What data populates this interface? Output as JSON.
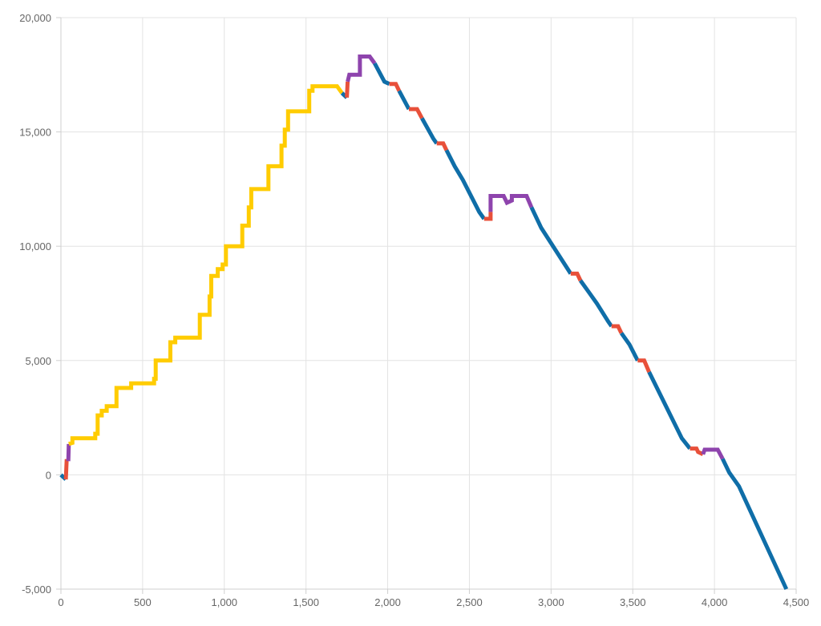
{
  "chart_data": {
    "type": "line",
    "title": "",
    "xlabel": "",
    "ylabel": "",
    "xlim": [
      0,
      4500
    ],
    "ylim": [
      -5000,
      20000
    ],
    "x_ticks": [
      0,
      500,
      1000,
      1500,
      2000,
      2500,
      3000,
      3500,
      4000,
      4500
    ],
    "x_tick_labels": [
      "0",
      "500",
      "1,000",
      "1,500",
      "2,000",
      "2,500",
      "3,000",
      "3,500",
      "4,000",
      "4,500"
    ],
    "y_ticks": [
      -5000,
      0,
      5000,
      10000,
      15000,
      20000
    ],
    "y_tick_labels": [
      "-5,000",
      "0",
      "5,000",
      "10,000",
      "15,000",
      "20,000"
    ],
    "grid": true,
    "legend": "none",
    "colors": {
      "blue": "#0f6ea8",
      "yellow": "#ffcc00",
      "red": "#e8503a",
      "purple": "#8e44ad"
    },
    "segments": [
      {
        "color": "blue",
        "points": [
          [
            0,
            0
          ],
          [
            30,
            -200
          ]
        ]
      },
      {
        "color": "red",
        "points": [
          [
            30,
            -200
          ],
          [
            35,
            600
          ],
          [
            45,
            600
          ]
        ]
      },
      {
        "color": "purple",
        "points": [
          [
            45,
            600
          ],
          [
            48,
            1350
          ]
        ]
      },
      {
        "color": "yellow",
        "points": [
          [
            48,
            1350
          ],
          [
            70,
            1400
          ],
          [
            70,
            1600
          ],
          [
            210,
            1600
          ],
          [
            210,
            1800
          ],
          [
            225,
            1800
          ],
          [
            225,
            2600
          ],
          [
            250,
            2600
          ],
          [
            250,
            2800
          ],
          [
            280,
            2800
          ],
          [
            280,
            3000
          ],
          [
            340,
            3000
          ],
          [
            340,
            3800
          ],
          [
            430,
            3800
          ],
          [
            430,
            4000
          ],
          [
            570,
            4000
          ],
          [
            570,
            4200
          ],
          [
            580,
            4200
          ],
          [
            580,
            5000
          ],
          [
            670,
            5000
          ],
          [
            670,
            5800
          ],
          [
            700,
            5800
          ],
          [
            700,
            6000
          ],
          [
            850,
            6000
          ],
          [
            850,
            7000
          ],
          [
            910,
            7000
          ],
          [
            910,
            7800
          ],
          [
            920,
            7800
          ],
          [
            920,
            8700
          ],
          [
            960,
            8700
          ],
          [
            960,
            9000
          ],
          [
            990,
            9000
          ],
          [
            990,
            9200
          ],
          [
            1010,
            9200
          ],
          [
            1010,
            10000
          ],
          [
            1110,
            10000
          ],
          [
            1110,
            10900
          ],
          [
            1150,
            10900
          ],
          [
            1150,
            11700
          ],
          [
            1165,
            11700
          ],
          [
            1165,
            12500
          ],
          [
            1270,
            12500
          ],
          [
            1270,
            13500
          ],
          [
            1350,
            13500
          ],
          [
            1350,
            14400
          ],
          [
            1370,
            14400
          ],
          [
            1370,
            15100
          ],
          [
            1390,
            15100
          ],
          [
            1390,
            15900
          ],
          [
            1520,
            15900
          ],
          [
            1520,
            16800
          ],
          [
            1540,
            16800
          ],
          [
            1540,
            17000
          ],
          [
            1690,
            17000
          ],
          [
            1720,
            16700
          ]
        ]
      },
      {
        "color": "blue",
        "points": [
          [
            1720,
            16700
          ],
          [
            1750,
            16500
          ]
        ]
      },
      {
        "color": "red",
        "points": [
          [
            1750,
            16500
          ],
          [
            1755,
            17200
          ]
        ]
      },
      {
        "color": "purple",
        "points": [
          [
            1755,
            17200
          ],
          [
            1765,
            17500
          ],
          [
            1830,
            17500
          ],
          [
            1830,
            18300
          ],
          [
            1890,
            18300
          ],
          [
            1920,
            18000
          ]
        ]
      },
      {
        "color": "blue",
        "points": [
          [
            1920,
            18000
          ],
          [
            1980,
            17200
          ],
          [
            2010,
            17100
          ]
        ]
      },
      {
        "color": "red",
        "points": [
          [
            2010,
            17100
          ],
          [
            2050,
            17100
          ],
          [
            2070,
            16800
          ]
        ]
      },
      {
        "color": "blue",
        "points": [
          [
            2070,
            16800
          ],
          [
            2130,
            16000
          ]
        ]
      },
      {
        "color": "red",
        "points": [
          [
            2130,
            16000
          ],
          [
            2180,
            16000
          ],
          [
            2210,
            15600
          ]
        ]
      },
      {
        "color": "blue",
        "points": [
          [
            2210,
            15600
          ],
          [
            2280,
            14700
          ],
          [
            2300,
            14500
          ]
        ]
      },
      {
        "color": "red",
        "points": [
          [
            2300,
            14500
          ],
          [
            2340,
            14500
          ],
          [
            2360,
            14200
          ]
        ]
      },
      {
        "color": "blue",
        "points": [
          [
            2360,
            14200
          ],
          [
            2410,
            13500
          ],
          [
            2460,
            12900
          ],
          [
            2560,
            11500
          ],
          [
            2590,
            11200
          ]
        ]
      },
      {
        "color": "red",
        "points": [
          [
            2590,
            11200
          ],
          [
            2630,
            11200
          ],
          [
            2630,
            11500
          ]
        ]
      },
      {
        "color": "purple",
        "points": [
          [
            2630,
            11500
          ],
          [
            2630,
            12200
          ],
          [
            2710,
            12200
          ],
          [
            2730,
            11900
          ],
          [
            2760,
            12000
          ],
          [
            2760,
            12200
          ],
          [
            2850,
            12200
          ],
          [
            2880,
            11700
          ]
        ]
      },
      {
        "color": "blue",
        "points": [
          [
            2880,
            11700
          ],
          [
            2940,
            10800
          ],
          [
            3120,
            8800
          ]
        ]
      },
      {
        "color": "red",
        "points": [
          [
            3120,
            8800
          ],
          [
            3160,
            8800
          ],
          [
            3180,
            8500
          ]
        ]
      },
      {
        "color": "blue",
        "points": [
          [
            3180,
            8500
          ],
          [
            3230,
            8000
          ],
          [
            3280,
            7500
          ],
          [
            3350,
            6700
          ],
          [
            3370,
            6500
          ]
        ]
      },
      {
        "color": "red",
        "points": [
          [
            3370,
            6500
          ],
          [
            3410,
            6500
          ],
          [
            3430,
            6200
          ]
        ]
      },
      {
        "color": "blue",
        "points": [
          [
            3430,
            6200
          ],
          [
            3480,
            5700
          ],
          [
            3530,
            5000
          ]
        ]
      },
      {
        "color": "red",
        "points": [
          [
            3530,
            5000
          ],
          [
            3570,
            5000
          ],
          [
            3600,
            4500
          ]
        ]
      },
      {
        "color": "blue",
        "points": [
          [
            3600,
            4500
          ],
          [
            3800,
            1600
          ],
          [
            3850,
            1150
          ]
        ]
      },
      {
        "color": "red",
        "points": [
          [
            3850,
            1150
          ],
          [
            3890,
            1150
          ],
          [
            3900,
            1000
          ],
          [
            3930,
            900
          ]
        ]
      },
      {
        "color": "purple",
        "points": [
          [
            3930,
            900
          ],
          [
            3940,
            1100
          ],
          [
            4020,
            1100
          ],
          [
            4050,
            700
          ]
        ]
      },
      {
        "color": "blue",
        "points": [
          [
            4050,
            700
          ],
          [
            4090,
            100
          ],
          [
            4150,
            -500
          ],
          [
            4440,
            -5000
          ]
        ]
      }
    ]
  }
}
